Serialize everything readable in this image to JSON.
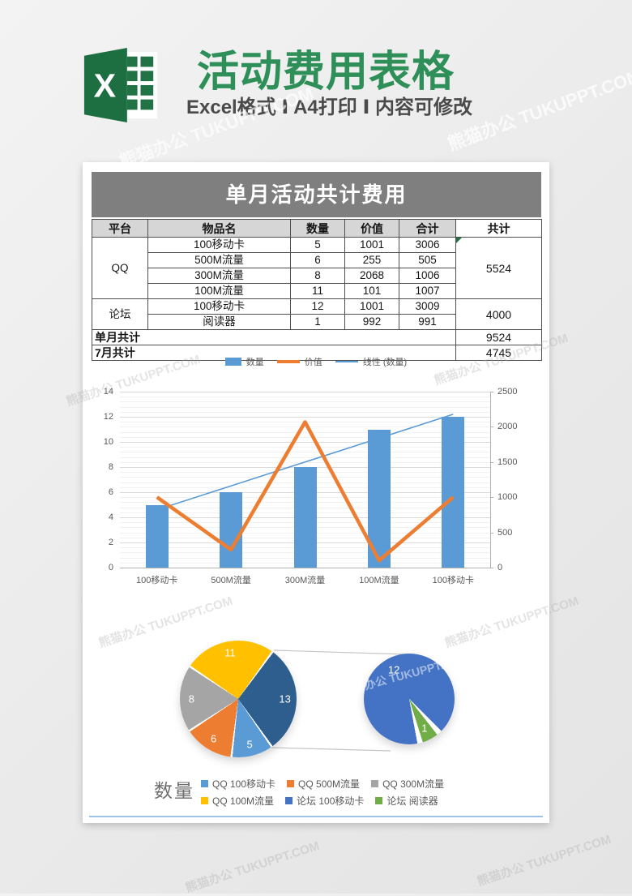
{
  "banner": {
    "logo_letter": "X",
    "title": "活动费用表格",
    "subtitle": "Excel格式 Ⅰ A4打印 Ⅰ 内容可修改"
  },
  "watermark": "熊猫办公 TUKUPPT.COM",
  "sheet": {
    "title": "单月活动共计费用",
    "table": {
      "headers": [
        "平台",
        "物品名",
        "数量",
        "价值",
        "合计",
        "共计"
      ],
      "groups": [
        {
          "platform": "QQ",
          "total": "5524",
          "rows": [
            {
              "item": "100移动卡",
              "qty": "5",
              "value": "1001",
              "sum": "3006"
            },
            {
              "item": "500M流量",
              "qty": "6",
              "value": "255",
              "sum": "505"
            },
            {
              "item": "300M流量",
              "qty": "8",
              "value": "2068",
              "sum": "1006"
            },
            {
              "item": "100M流量",
              "qty": "11",
              "value": "101",
              "sum": "1007"
            }
          ]
        },
        {
          "platform": "论坛",
          "total": "4000",
          "rows": [
            {
              "item": "100移动卡",
              "qty": "12",
              "value": "1001",
              "sum": "3009"
            },
            {
              "item": "阅读器",
              "qty": "1",
              "value": "992",
              "sum": "991"
            }
          ]
        }
      ],
      "footers": [
        {
          "label": "单月共计",
          "total": "9524"
        },
        {
          "label": "7月共计",
          "total": "4745"
        }
      ]
    }
  },
  "chart_data": [
    {
      "type": "bar",
      "subtype": "combo-bar-line",
      "categories": [
        "100移动卡",
        "500M流量",
        "300M流量",
        "100M流量",
        "100移动卡"
      ],
      "series": [
        {
          "name": "数量",
          "type": "bar",
          "axis": "left",
          "color": "#5B9BD5",
          "values": [
            5,
            6,
            8,
            11,
            12
          ]
        },
        {
          "name": "价值",
          "type": "line",
          "axis": "right",
          "color": "#ED7D31",
          "values": [
            1001,
            255,
            2068,
            101,
            1001
          ]
        },
        {
          "name": "线性 (数量)",
          "type": "trendline",
          "axis": "left",
          "color": "#5B9BD5",
          "values": [
            4.6,
            6.5,
            8.4,
            10.3,
            12.2
          ]
        }
      ],
      "left_axis": {
        "min": 0,
        "max": 14,
        "step": 2
      },
      "right_axis": {
        "min": 0,
        "max": 2500,
        "step": 500
      },
      "grid": true,
      "legend_position": "top"
    },
    {
      "type": "pie",
      "subtype": "pie-of-pie",
      "title": "数量",
      "main": {
        "labels": [
          "13",
          "5",
          "6",
          "8",
          "11"
        ],
        "values": [
          13,
          5,
          6,
          8,
          11
        ],
        "colors": [
          "#2D5E8E",
          "#5B9BD5",
          "#ED7D31",
          "#A5A5A5",
          "#FFC000"
        ],
        "rotation": 36
      },
      "secondary": {
        "labels": [
          "12",
          "1"
        ],
        "values": [
          12,
          1
        ],
        "colors": [
          "#4472C4",
          "#70AD47"
        ],
        "rotation": 166
      },
      "legend": [
        {
          "label": "QQ 100移动卡",
          "color": "#5B9BD5"
        },
        {
          "label": "QQ 500M流量",
          "color": "#ED7D31"
        },
        {
          "label": "QQ 300M流量",
          "color": "#A5A5A5"
        },
        {
          "label": "QQ 100M流量",
          "color": "#FFC000"
        },
        {
          "label": "论坛 100移动卡",
          "color": "#4472C4"
        },
        {
          "label": "论坛 阅读器",
          "color": "#70AD47"
        }
      ]
    }
  ]
}
